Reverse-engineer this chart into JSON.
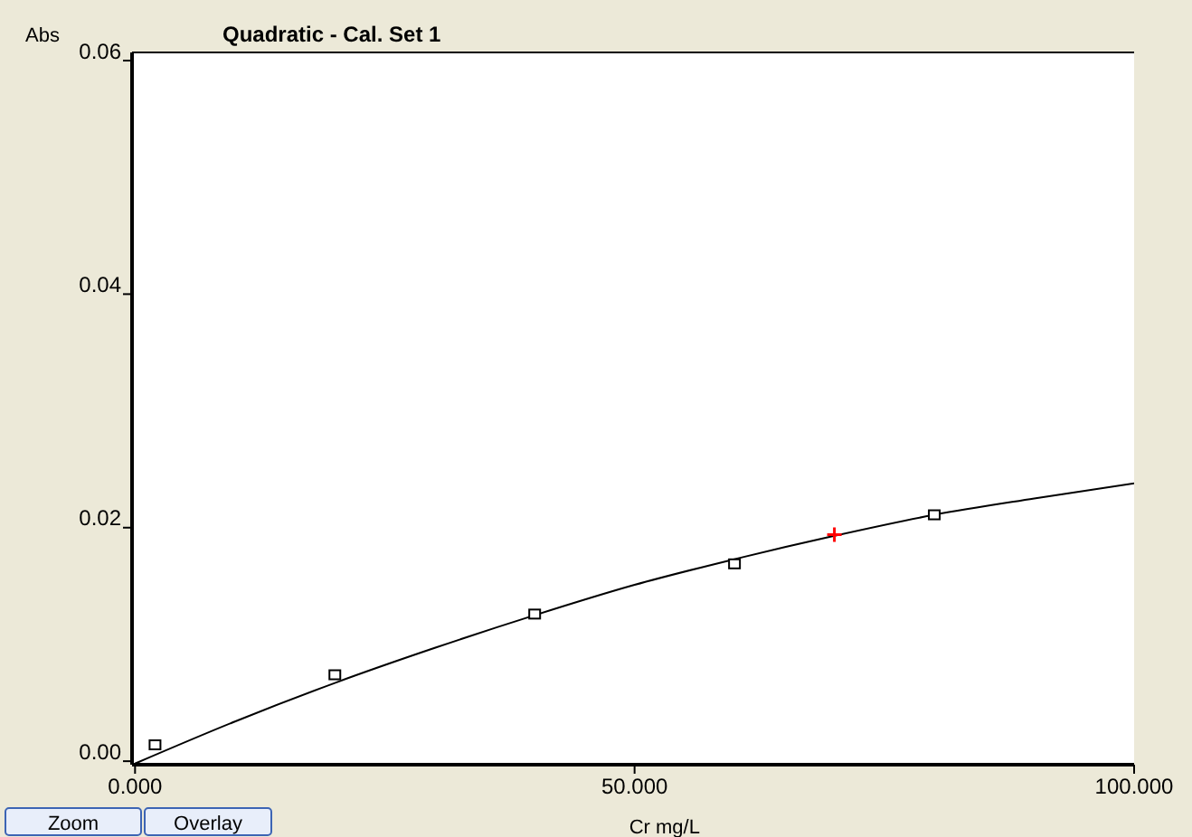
{
  "chart_data": {
    "type": "scatter",
    "title": "Quadratic - Cal. Set 1",
    "xlabel": "Cr mg/L",
    "ylabel": "Abs",
    "annotations": [
      "Zoom",
      "Overlay"
    ],
    "xlim": [
      -0.3,
      100
    ],
    "xticks": [
      {
        "value": 0,
        "label": "0.000"
      },
      {
        "value": 50,
        "label": "50.000"
      },
      {
        "value": 100,
        "label": "100.000"
      }
    ],
    "ylim": [
      -0.0003,
      0.0607
    ],
    "yticks": [
      {
        "value": 0,
        "label": "0.00"
      },
      {
        "value": 0.02,
        "label": "0.02"
      },
      {
        "value": 0.04,
        "label": "0.04"
      },
      {
        "value": 0.06,
        "label": "0.06"
      }
    ],
    "grid": false,
    "marker": "square",
    "series": [
      {
        "type": "line",
        "color": "#000000",
        "marker": "none",
        "x": [
          0,
          10,
          20,
          30,
          40,
          50,
          60,
          70,
          80,
          90,
          100
        ],
        "values": [
          -0.0002,
          0.0034,
          0.0067,
          0.0097,
          0.0125,
          0.0151,
          0.0173,
          0.0193,
          0.0211,
          0.0225,
          0.0238
        ]
      },
      {
        "color": "#000000",
        "x": [
          2,
          20,
          40,
          60,
          80
        ],
        "values": [
          0.0014,
          0.0074,
          0.0126,
          0.0169,
          0.0211
        ]
      },
      {
        "type": "scatter",
        "color": "#ff0000",
        "marker": "cross",
        "x": [
          70
        ],
        "values": [
          0.0194
        ]
      }
    ]
  }
}
